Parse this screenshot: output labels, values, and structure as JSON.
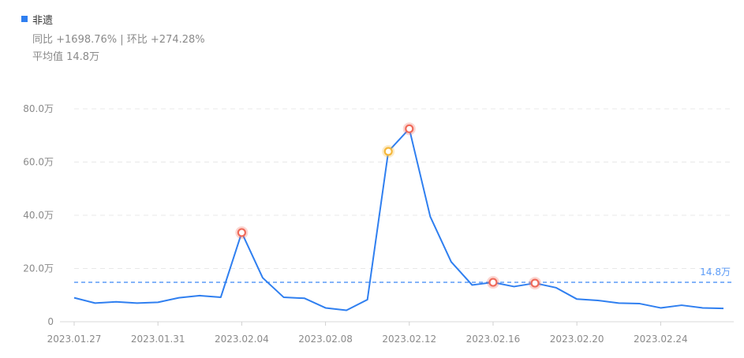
{
  "legend": {
    "label": "非遗",
    "color": "#2f7ff0"
  },
  "stats": {
    "comparison": "同比 +1698.76% | 环比 +274.28%",
    "average": "平均值 14.8万"
  },
  "chart_data": {
    "type": "line",
    "x": [
      "2023.01.27",
      "2023.01.28",
      "2023.01.29",
      "2023.01.30",
      "2023.01.31",
      "2023.02.01",
      "2023.02.02",
      "2023.02.03",
      "2023.02.04",
      "2023.02.05",
      "2023.02.06",
      "2023.02.07",
      "2023.02.08",
      "2023.02.09",
      "2023.02.10",
      "2023.02.11",
      "2023.02.12",
      "2023.02.13",
      "2023.02.14",
      "2023.02.15",
      "2023.02.16",
      "2023.02.17",
      "2023.02.18",
      "2023.02.19",
      "2023.02.20",
      "2023.02.21",
      "2023.02.22",
      "2023.02.23",
      "2023.02.24",
      "2023.02.25",
      "2023.02.26",
      "2023.02.27"
    ],
    "series": [
      {
        "values": [
          9.0,
          7.0,
          7.5,
          7.0,
          7.3,
          9.0,
          9.8,
          9.2,
          33.5,
          16.5,
          9.2,
          8.8,
          5.2,
          4.3,
          8.3,
          64.0,
          72.5,
          39.5,
          22.5,
          13.8,
          14.8,
          13.2,
          14.5,
          12.8,
          8.5,
          8.0,
          7.0,
          6.8,
          5.2,
          6.2,
          5.2,
          5.0
        ],
        "color": "#2f7ff0"
      }
    ],
    "highlights": [
      {
        "x": "2023.02.04",
        "value": 33.5,
        "color": "#f06a5a"
      },
      {
        "x": "2023.02.11",
        "value": 64.0,
        "color": "#f5b83b"
      },
      {
        "x": "2023.02.12",
        "value": 72.5,
        "color": "#f06a5a"
      },
      {
        "x": "2023.02.16",
        "value": 14.8,
        "color": "#f06a5a"
      },
      {
        "x": "2023.02.18",
        "value": 14.5,
        "color": "#f06a5a"
      }
    ],
    "x_tick_labels": [
      "2023.01.27",
      "2023.01.31",
      "2023.02.04",
      "2023.02.08",
      "2023.02.12",
      "2023.02.16",
      "2023.02.20",
      "2023.02.24"
    ],
    "y_ticks": [
      {
        "value": 0,
        "label": "0"
      },
      {
        "value": 20,
        "label": "20.0万"
      },
      {
        "value": 40,
        "label": "40.0万"
      },
      {
        "value": 60,
        "label": "60.0万"
      },
      {
        "value": 80,
        "label": "80.0万"
      }
    ],
    "ylim": [
      0,
      80
    ],
    "average_line": {
      "value": 14.8,
      "label": "14.8万",
      "color": "#5b9bf7"
    },
    "grid": true,
    "title": "",
    "xlabel": "",
    "ylabel": ""
  }
}
